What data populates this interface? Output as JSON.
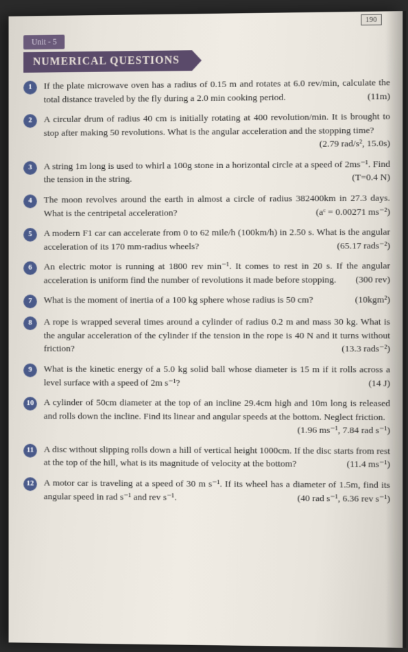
{
  "pageNumberTop": "190",
  "unitTab": "Unit - 5",
  "sectionTitle": "NUMERICAL QUESTIONS",
  "questions": [
    {
      "num": "1",
      "text": "If the plate microwave oven has a radius of 0.15 m and rotates at 6.0 rev/min, calculate the total distance traveled by the fly during a 2.0 min cooking period.",
      "answer": "(11m)"
    },
    {
      "num": "2",
      "text": "A circular drum of radius 40 cm is initially rotating at 400 revolution/min. It is brought to stop after making 50 revolutions. What is the angular acceleration and the stopping time?",
      "answer": "(2.79 rad/s², 15.0s)"
    },
    {
      "num": "3",
      "text": "A string 1m long is used to whirl a 100g stone in a horizontal circle at a speed of 2ms⁻¹. Find the tension in the string.",
      "answer": "(T=0.4 N)"
    },
    {
      "num": "4",
      "text": "The moon revolves around the earth in almost a circle of radius 382400km in 27.3 days. What is the centripetal acceleration?",
      "answer": "(aᶜ = 0.00271 ms⁻²)"
    },
    {
      "num": "5",
      "text": "A modern F1 car can accelerate from 0 to 62 mile/h (100km/h) in 2.50 s. What is the angular acceleration of its 170 mm-radius wheels?",
      "answer": "(65.17 rads⁻²)"
    },
    {
      "num": "6",
      "text": "An electric motor is running at 1800 rev min⁻¹. It comes to rest in 20 s. If the angular acceleration is uniform find the number of revolutions it made before stopping.",
      "answer": "(300 rev)"
    },
    {
      "num": "7",
      "text": "What is the moment of inertia of a 100 kg sphere whose radius is 50 cm?",
      "answer": "(10kgm²)"
    },
    {
      "num": "8",
      "text": "A rope is wrapped several times around a cylinder of radius 0.2 m and mass 30 kg. What is the angular acceleration of the cylinder if the tension in the rope is 40 N and it turns without friction?",
      "answer": "(13.3 rads⁻²)"
    },
    {
      "num": "9",
      "text": "What is the kinetic energy of a 5.0 kg solid ball whose diameter is 15 m if it rolls across a level surface with a speed of 2m s⁻¹?",
      "answer": "(14 J)"
    },
    {
      "num": "10",
      "text": "A cylinder of 50cm diameter at the top of an incline 29.4cm high and 10m long is released and rolls down the incline. Find its linear and angular speeds at the bottom. Neglect friction.",
      "answer": "(1.96 ms⁻¹, 7.84 rad s⁻¹)"
    },
    {
      "num": "11",
      "text": "A disc without slipping rolls down a hill of vertical height 1000cm. If the disc starts from rest at the top of the hill, what is its magnitude of velocity at the bottom?",
      "answer": "(11.4 ms⁻¹)"
    },
    {
      "num": "12",
      "text": "A motor car is traveling at a speed of 30 m s⁻¹. If its wheel has a diameter of 1.5m, find its angular speed in rad s⁻¹ and rev s⁻¹.",
      "answer": "(40 rad s⁻¹, 6.36 rev s⁻¹)"
    }
  ]
}
